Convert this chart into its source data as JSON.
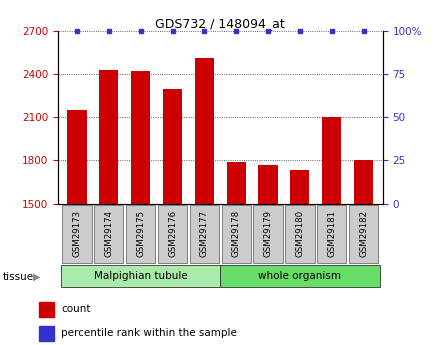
{
  "title": "GDS732 / 148094_at",
  "samples": [
    "GSM29173",
    "GSM29174",
    "GSM29175",
    "GSM29176",
    "GSM29177",
    "GSM29178",
    "GSM29179",
    "GSM29180",
    "GSM29181",
    "GSM29182"
  ],
  "counts": [
    2150,
    2430,
    2420,
    2300,
    2510,
    1790,
    1770,
    1730,
    2100,
    1800
  ],
  "percentile_ranks": [
    100,
    100,
    100,
    100,
    100,
    100,
    100,
    100,
    100,
    100
  ],
  "tissue_groups": [
    {
      "label": "Malpighian tubule",
      "start": 0,
      "end": 5,
      "color": "#aaeaaa"
    },
    {
      "label": "whole organism",
      "start": 5,
      "end": 10,
      "color": "#66dd66"
    }
  ],
  "tissue_label": "tissue",
  "ylim_left": [
    1500,
    2700
  ],
  "ylim_right": [
    0,
    100
  ],
  "yticks_left": [
    1500,
    1800,
    2100,
    2400,
    2700
  ],
  "yticks_right": [
    0,
    25,
    50,
    75,
    100
  ],
  "yticklabels_right": [
    "0",
    "25",
    "50",
    "75",
    "100%"
  ],
  "bar_color": "#cc0000",
  "dot_color": "#3333cc",
  "bar_width": 0.6,
  "grid_color": "#333333",
  "tick_box_color": "#cccccc",
  "legend_items": [
    {
      "label": "count",
      "color": "#cc0000"
    },
    {
      "label": "percentile rank within the sample",
      "color": "#3333cc"
    }
  ]
}
